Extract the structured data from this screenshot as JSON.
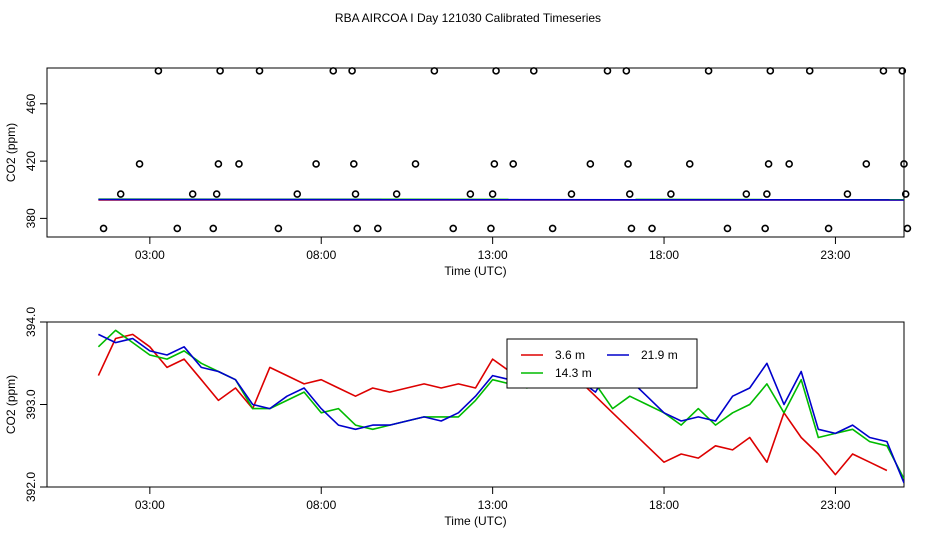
{
  "title": "RBA AIRCOA I  Day 121030  Calibrated Timeseries",
  "chart_data": [
    {
      "type": "scatter",
      "ylabel": "CO2 (ppm)",
      "xlabel": "Time (UTC)",
      "xlim": [
        0,
        25
      ],
      "ylim": [
        367,
        485
      ],
      "xticks": [
        {
          "v": 3,
          "label": "03:00"
        },
        {
          "v": 8,
          "label": "08:00"
        },
        {
          "v": 13,
          "label": "13:00"
        },
        {
          "v": 18,
          "label": "18:00"
        },
        {
          "v": 23,
          "label": "23:00"
        }
      ],
      "yticks": [
        {
          "v": 380,
          "label": "380"
        },
        {
          "v": 420,
          "label": "420"
        },
        {
          "v": 460,
          "label": "460"
        }
      ],
      "point_levels": [
        373,
        397,
        418,
        483
      ],
      "points": [
        {
          "x": 1.65,
          "y": 373
        },
        {
          "x": 2.15,
          "y": 397
        },
        {
          "x": 2.7,
          "y": 418
        },
        {
          "x": 3.25,
          "y": 483
        },
        {
          "x": 3.8,
          "y": 373
        },
        {
          "x": 4.25,
          "y": 397
        },
        {
          "x": 4.85,
          "y": 373
        },
        {
          "x": 4.95,
          "y": 397
        },
        {
          "x": 5.0,
          "y": 418
        },
        {
          "x": 5.05,
          "y": 483
        },
        {
          "x": 5.6,
          "y": 418
        },
        {
          "x": 6.2,
          "y": 483
        },
        {
          "x": 6.75,
          "y": 373
        },
        {
          "x": 7.3,
          "y": 397
        },
        {
          "x": 7.85,
          "y": 418
        },
        {
          "x": 8.35,
          "y": 483
        },
        {
          "x": 8.9,
          "y": 483
        },
        {
          "x": 8.95,
          "y": 418
        },
        {
          "x": 9.0,
          "y": 397
        },
        {
          "x": 9.05,
          "y": 373
        },
        {
          "x": 9.65,
          "y": 373
        },
        {
          "x": 10.2,
          "y": 397
        },
        {
          "x": 10.75,
          "y": 418
        },
        {
          "x": 11.3,
          "y": 483
        },
        {
          "x": 11.85,
          "y": 373
        },
        {
          "x": 12.35,
          "y": 397
        },
        {
          "x": 12.95,
          "y": 373
        },
        {
          "x": 13.0,
          "y": 397
        },
        {
          "x": 13.05,
          "y": 418
        },
        {
          "x": 13.1,
          "y": 483
        },
        {
          "x": 13.6,
          "y": 418
        },
        {
          "x": 14.2,
          "y": 483
        },
        {
          "x": 14.75,
          "y": 373
        },
        {
          "x": 15.3,
          "y": 397
        },
        {
          "x": 15.85,
          "y": 418
        },
        {
          "x": 16.35,
          "y": 483
        },
        {
          "x": 16.9,
          "y": 483
        },
        {
          "x": 16.95,
          "y": 418
        },
        {
          "x": 17.0,
          "y": 397
        },
        {
          "x": 17.05,
          "y": 373
        },
        {
          "x": 17.65,
          "y": 373
        },
        {
          "x": 18.2,
          "y": 397
        },
        {
          "x": 18.75,
          "y": 418
        },
        {
          "x": 19.3,
          "y": 483
        },
        {
          "x": 19.85,
          "y": 373
        },
        {
          "x": 20.4,
          "y": 397
        },
        {
          "x": 20.95,
          "y": 373
        },
        {
          "x": 21.0,
          "y": 397
        },
        {
          "x": 21.05,
          "y": 418
        },
        {
          "x": 21.1,
          "y": 483
        },
        {
          "x": 21.65,
          "y": 418
        },
        {
          "x": 22.25,
          "y": 483
        },
        {
          "x": 22.8,
          "y": 373
        },
        {
          "x": 23.35,
          "y": 397
        },
        {
          "x": 23.9,
          "y": 418
        },
        {
          "x": 24.4,
          "y": 483
        },
        {
          "x": 24.95,
          "y": 483
        },
        {
          "x": 25.0,
          "y": 418
        },
        {
          "x": 25.05,
          "y": 397
        },
        {
          "x": 25.1,
          "y": 373
        }
      ],
      "series": [
        {
          "name": "3.6 m",
          "color": "#dd0000",
          "x": [
            1.5,
            25
          ],
          "values": [
            392.9,
            392.8
          ]
        },
        {
          "name": "14.3 m",
          "color": "#00bb00",
          "x": [
            1.5,
            25
          ],
          "values": [
            393.4,
            393.1
          ]
        },
        {
          "name": "21.9 m",
          "color": "#0000cc",
          "x": [
            1.5,
            25
          ],
          "values": [
            393.2,
            392.9
          ]
        }
      ]
    },
    {
      "type": "line",
      "ylabel": "CO2 (ppm)",
      "xlabel": "Time (UTC)",
      "xlim": [
        0,
        25
      ],
      "ylim": [
        392,
        394
      ],
      "xticks": [
        {
          "v": 3,
          "label": "03:00"
        },
        {
          "v": 8,
          "label": "08:00"
        },
        {
          "v": 13,
          "label": "13:00"
        },
        {
          "v": 18,
          "label": "18:00"
        },
        {
          "v": 23,
          "label": "23:00"
        }
      ],
      "yticks": [
        {
          "v": 392.0,
          "label": "392.0"
        },
        {
          "v": 393.0,
          "label": "393.0"
        },
        {
          "v": 394.0,
          "label": "394.0"
        }
      ],
      "legend_position": "top-center",
      "series": [
        {
          "name": "3.6 m",
          "color": "#dd0000",
          "x": [
            1.5,
            2.0,
            2.5,
            3.0,
            3.5,
            4.0,
            4.5,
            5.0,
            5.5,
            6.0,
            6.5,
            7.0,
            7.5,
            8.0,
            8.5,
            9.0,
            9.5,
            10.0,
            10.5,
            11.0,
            11.5,
            12.0,
            12.5,
            13.0,
            13.5,
            14.0,
            14.5,
            15.0,
            15.5,
            16.0,
            16.5,
            17.0,
            17.5,
            18.0,
            18.5,
            19.0,
            19.5,
            20.0,
            20.5,
            21.0,
            21.5,
            22.0,
            22.5,
            23.0,
            23.5,
            24.0,
            24.5
          ],
          "values": [
            393.35,
            393.8,
            393.85,
            393.7,
            393.45,
            393.55,
            393.3,
            393.05,
            393.2,
            392.95,
            393.45,
            393.35,
            393.25,
            393.3,
            393.2,
            393.1,
            393.2,
            393.15,
            393.2,
            393.25,
            393.2,
            393.25,
            393.2,
            393.55,
            393.4,
            393.45,
            393.35,
            393.4,
            393.3,
            393.1,
            392.9,
            392.7,
            392.5,
            392.3,
            392.4,
            392.35,
            392.5,
            392.45,
            392.6,
            392.3,
            392.9,
            392.6,
            392.4,
            392.15,
            392.4,
            392.3,
            392.2
          ]
        },
        {
          "name": "14.3 m",
          "color": "#00bb00",
          "x": [
            1.5,
            2.0,
            2.5,
            3.0,
            3.5,
            4.0,
            4.5,
            5.0,
            5.5,
            6.0,
            6.5,
            7.0,
            7.5,
            8.0,
            8.5,
            9.0,
            9.5,
            10.0,
            10.5,
            11.0,
            11.5,
            12.0,
            12.5,
            13.0,
            13.5,
            14.0,
            14.5,
            15.0,
            15.5,
            16.0,
            16.5,
            17.0,
            17.5,
            18.0,
            18.5,
            19.0,
            19.5,
            20.0,
            20.5,
            21.0,
            21.5,
            22.0,
            22.5,
            23.0,
            23.5,
            24.0,
            24.5,
            25.0
          ],
          "values": [
            393.7,
            393.9,
            393.75,
            393.6,
            393.55,
            393.65,
            393.5,
            393.4,
            393.3,
            392.95,
            392.95,
            393.05,
            393.15,
            392.9,
            392.95,
            392.75,
            392.7,
            392.75,
            392.8,
            392.85,
            392.85,
            392.85,
            393.05,
            393.3,
            393.25,
            393.2,
            393.3,
            393.35,
            393.3,
            393.25,
            392.95,
            393.1,
            393.0,
            392.9,
            392.75,
            392.95,
            392.75,
            392.9,
            393.0,
            393.25,
            392.9,
            393.3,
            392.6,
            392.65,
            392.7,
            392.55,
            392.5,
            392.1
          ]
        },
        {
          "name": "21.9 m",
          "color": "#0000cc",
          "x": [
            1.5,
            2.0,
            2.5,
            3.0,
            3.5,
            4.0,
            4.5,
            5.0,
            5.5,
            6.0,
            6.5,
            7.0,
            7.5,
            8.0,
            8.5,
            9.0,
            9.5,
            10.0,
            10.5,
            11.0,
            11.5,
            12.0,
            12.5,
            13.0,
            13.5,
            14.0,
            14.5,
            15.0,
            15.5,
            16.0,
            16.5,
            17.0,
            17.5,
            18.0,
            18.5,
            19.0,
            19.5,
            20.0,
            20.5,
            21.0,
            21.5,
            22.0,
            22.5,
            23.0,
            23.5,
            24.0,
            24.5,
            25.0
          ],
          "values": [
            393.85,
            393.75,
            393.8,
            393.65,
            393.6,
            393.7,
            393.45,
            393.4,
            393.3,
            393.0,
            392.95,
            393.1,
            393.2,
            392.95,
            392.75,
            392.7,
            392.75,
            392.75,
            392.8,
            392.85,
            392.8,
            392.9,
            393.1,
            393.35,
            393.3,
            393.25,
            393.35,
            393.35,
            393.3,
            393.15,
            393.5,
            393.3,
            393.1,
            392.9,
            392.8,
            392.85,
            392.8,
            393.1,
            393.2,
            393.5,
            393.0,
            393.4,
            392.7,
            392.65,
            392.75,
            392.6,
            392.55,
            392.05
          ]
        }
      ]
    }
  ]
}
